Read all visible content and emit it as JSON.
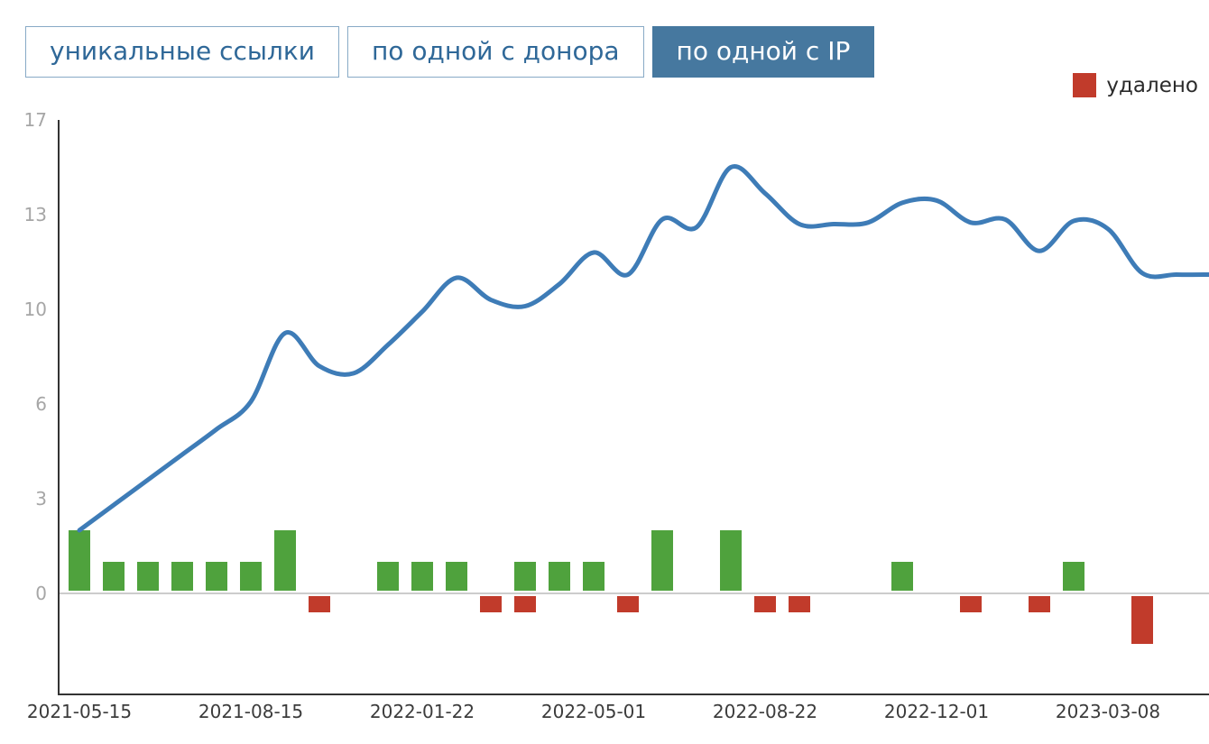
{
  "tabs": [
    {
      "label": "уникальные ссылки",
      "active": false
    },
    {
      "label": "по одной с донора",
      "active": false
    },
    {
      "label": "по одной с IP",
      "active": true
    }
  ],
  "legend": {
    "deleted_label": "удалено",
    "deleted_color": "#c13b2b"
  },
  "colors": {
    "line": "#3e7cb7",
    "added": "#4fa23d",
    "deleted": "#c13b2b",
    "axis": "#333333",
    "zero_line": "#cccccc",
    "y_label": "#a6a6a6",
    "x_label": "#3c3c3c",
    "tab_active_bg": "#46789f",
    "tab_text": "#2f6898",
    "tab_border": "#88aac6"
  },
  "chart_data": {
    "type": "line+bar",
    "title": "",
    "xlabel": "",
    "ylabel": "",
    "y_ticks": [
      0,
      3,
      6,
      10,
      13,
      17
    ],
    "ylim": [
      -3.2,
      17
    ],
    "grid": "zero-line-only",
    "legend_position": "top-right",
    "x_ticks": [
      {
        "slot": 0,
        "label": "2021-05-15"
      },
      {
        "slot": 5,
        "label": "2021-08-15"
      },
      {
        "slot": 10,
        "label": "2022-01-22"
      },
      {
        "slot": 15,
        "label": "2022-05-01"
      },
      {
        "slot": 20,
        "label": "2022-08-22"
      },
      {
        "slot": 25,
        "label": "2022-12-01"
      },
      {
        "slot": 30,
        "label": "2023-03-08"
      }
    ],
    "series": [
      {
        "name": "total-links-line",
        "type": "line",
        "values": [
          2.0,
          2.8,
          3.6,
          4.4,
          5.2,
          6.1,
          9.0,
          7.6,
          7.3,
          8.5,
          9.9,
          11.0,
          10.3,
          10.1,
          10.8,
          11.8,
          11.1,
          12.85,
          12.6,
          15.0,
          13.9,
          12.7,
          12.7,
          12.75,
          13.5,
          13.6,
          12.75,
          12.85,
          11.85,
          12.8,
          12.55,
          11.15,
          11.1,
          11.1
        ]
      },
      {
        "name": "added-links-bars",
        "type": "bar",
        "values": [
          2,
          1,
          1,
          1,
          1,
          1,
          2,
          0,
          0,
          1,
          1,
          1,
          0,
          1,
          1,
          1,
          0,
          2,
          0,
          2,
          0,
          0,
          0,
          0,
          1,
          0,
          0,
          0,
          0,
          1,
          0,
          0,
          0,
          0
        ]
      },
      {
        "name": "deleted-links-bars",
        "type": "bar",
        "values": [
          0,
          0,
          0,
          0,
          0,
          0,
          0,
          -0.6,
          0,
          0,
          0,
          0,
          -0.6,
          -0.6,
          0,
          0,
          -0.6,
          0,
          0,
          0,
          -0.6,
          -0.6,
          0,
          0,
          0,
          0,
          -0.6,
          0,
          -0.6,
          0,
          0,
          -1.6,
          0,
          0
        ]
      }
    ]
  }
}
